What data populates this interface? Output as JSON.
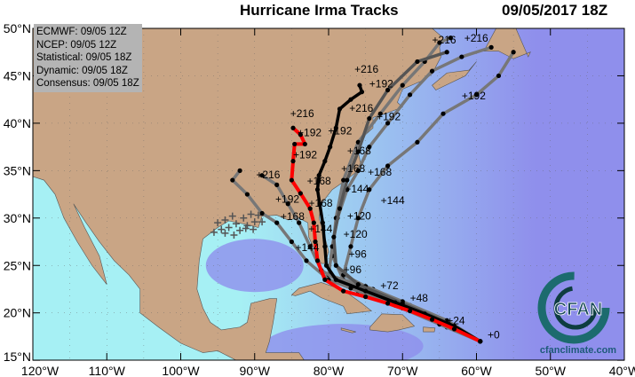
{
  "header": {
    "title": "Hurricane Irma Tracks",
    "datetime": "09/05/2017 18Z"
  },
  "legend": {
    "items": [
      "ECMWF: 09/05 12Z",
      "NCEP: 09/05 12Z",
      "Statistical: 09/05 18Z",
      "Dynamic: 09/05 18Z",
      "Consensus: 09/05 18Z"
    ]
  },
  "axes": {
    "lon_ticks": [
      {
        "lon": -120,
        "label": "120°W"
      },
      {
        "lon": -110,
        "label": "110°W"
      },
      {
        "lon": -100,
        "label": "100°W"
      },
      {
        "lon": -90,
        "label": "90°W"
      },
      {
        "lon": -80,
        "label": "80°W"
      },
      {
        "lon": -70,
        "label": "70°W"
      },
      {
        "lon": -60,
        "label": "60°W"
      },
      {
        "lon": -50,
        "label": "50°W"
      },
      {
        "lon": -40,
        "label": "40°W"
      }
    ],
    "lat_ticks": [
      {
        "lat": 50,
        "label": "50°N"
      },
      {
        "lat": 45,
        "label": "45°N"
      },
      {
        "lat": 40,
        "label": "40°N"
      },
      {
        "lat": 35,
        "label": "35°N"
      },
      {
        "lat": 30,
        "label": "30°N"
      },
      {
        "lat": 25,
        "label": "25°N"
      },
      {
        "lat": 20,
        "label": "20°N"
      },
      {
        "lat": 15,
        "label": "15°N"
      }
    ],
    "extent": {
      "lon": [
        -120,
        -40
      ],
      "lat": [
        15,
        50
      ]
    }
  },
  "colors": {
    "land": "#c9a585",
    "ocean_shallow": "#a6f0f4",
    "ocean_deep": "#8f8fec",
    "consensus_track": "#ff0000",
    "ecmwf_track": "#000000",
    "other_tracks": "#777777"
  },
  "tracks": [
    {
      "color": "#ff0000",
      "points": [
        [
          -59.5,
          17
        ],
        [
          -63,
          18.3
        ],
        [
          -66,
          19.3
        ],
        [
          -69,
          20.2
        ],
        [
          -72,
          21
        ],
        [
          -75,
          21.7
        ],
        [
          -78,
          22.3
        ],
        [
          -80.5,
          23.5
        ],
        [
          -81.5,
          25.5
        ],
        [
          -81.8,
          27.5
        ],
        [
          -82,
          29.5
        ],
        [
          -82.5,
          31
        ],
        [
          -83.8,
          32.6
        ],
        [
          -85,
          34
        ],
        [
          -84.8,
          36
        ],
        [
          -84.6,
          37.8
        ],
        [
          -83.2,
          37.8
        ],
        [
          -83.8,
          38.8
        ],
        [
          -84.8,
          39.5
        ]
      ]
    },
    {
      "color": "#000000",
      "points": [
        [
          -59.5,
          17
        ],
        [
          -63,
          18.6
        ],
        [
          -67,
          19.9
        ],
        [
          -71,
          21.1
        ],
        [
          -75,
          22.3
        ],
        [
          -79,
          23.5
        ],
        [
          -80.3,
          25
        ],
        [
          -80.5,
          27
        ],
        [
          -80.8,
          29.5
        ],
        [
          -81.2,
          31.5
        ],
        [
          -81.5,
          33
        ],
        [
          -81.3,
          34.5
        ],
        [
          -80.5,
          36
        ],
        [
          -79.8,
          37.5
        ],
        [
          -79,
          39.5
        ],
        [
          -78.5,
          41.5
        ],
        [
          -77,
          42.5
        ],
        [
          -75.5,
          43.3
        ],
        [
          -75.8,
          44
        ]
      ]
    },
    {
      "color": "#777777",
      "points": [
        [
          -59.5,
          17
        ],
        [
          -64,
          18.9
        ],
        [
          -69,
          20.6
        ],
        [
          -74,
          22.3
        ],
        [
          -78,
          23.5
        ],
        [
          -79.5,
          26
        ],
        [
          -79,
          30
        ],
        [
          -78,
          34
        ],
        [
          -76,
          38
        ],
        [
          -73,
          41
        ],
        [
          -70,
          44
        ],
        [
          -67,
          46.5
        ],
        [
          -65,
          48.5
        ],
        [
          -63.5,
          49
        ]
      ]
    },
    {
      "color": "#777777",
      "points": [
        [
          -59.5,
          17
        ],
        [
          -64,
          19
        ],
        [
          -69,
          20.8
        ],
        [
          -74,
          22.5
        ],
        [
          -80,
          24
        ],
        [
          -79.5,
          27
        ],
        [
          -78.8,
          30
        ],
        [
          -77.5,
          33
        ],
        [
          -76,
          35
        ],
        [
          -74.5,
          37.5
        ],
        [
          -72,
          40
        ],
        [
          -69,
          43
        ],
        [
          -66,
          45.5
        ],
        [
          -62,
          47
        ],
        [
          -58,
          48
        ]
      ]
    },
    {
      "color": "#777777",
      "points": [
        [
          -59.5,
          17
        ],
        [
          -64,
          19.2
        ],
        [
          -70,
          21.2
        ],
        [
          -75,
          22.8
        ],
        [
          -78,
          24
        ],
        [
          -77,
          27
        ],
        [
          -76,
          30
        ],
        [
          -74.5,
          33
        ],
        [
          -72,
          35.5
        ],
        [
          -68,
          38
        ],
        [
          -64.5,
          41
        ],
        [
          -60,
          43
        ],
        [
          -57,
          45
        ],
        [
          -55,
          47.5
        ]
      ]
    },
    {
      "color": "#777777",
      "points": [
        [
          -59.5,
          17
        ],
        [
          -64,
          18.5
        ],
        [
          -70,
          20.5
        ],
        [
          -76,
          22.3
        ],
        [
          -80,
          23.5
        ],
        [
          -83,
          25.5
        ],
        [
          -85,
          27.5
        ],
        [
          -87,
          29.5
        ],
        [
          -89,
          30.5
        ],
        [
          -91,
          32.5
        ],
        [
          -93,
          34
        ],
        [
          -92,
          35
        ]
      ]
    },
    {
      "color": "#777777",
      "points": [
        [
          -59.5,
          17
        ],
        [
          -65,
          18.8
        ],
        [
          -71,
          20.8
        ],
        [
          -77,
          22.6
        ],
        [
          -81,
          24.5
        ],
        [
          -82.5,
          27
        ],
        [
          -84,
          29.5
        ],
        [
          -85.5,
          31.5
        ],
        [
          -87,
          33.5
        ],
        [
          -89,
          34.5
        ]
      ]
    },
    {
      "color": "#555555",
      "points": [
        [
          -59.5,
          17
        ],
        [
          -64,
          19
        ],
        [
          -70,
          21
        ],
        [
          -76,
          23
        ],
        [
          -79,
          25
        ],
        [
          -79.3,
          28
        ],
        [
          -78.5,
          31
        ],
        [
          -77.5,
          34
        ],
        [
          -76,
          37
        ],
        [
          -74.5,
          40.5
        ],
        [
          -72,
          43.5
        ],
        [
          -68,
          46.5
        ],
        [
          -64,
          47.5
        ]
      ]
    }
  ],
  "track_labels": [
    {
      "text": "+0",
      "lon": -58.5,
      "lat": 17.3
    },
    {
      "text": "+24",
      "lon": -64,
      "lat": 18.8
    },
    {
      "text": "+48",
      "lon": -69,
      "lat": 21.2
    },
    {
      "text": "+72",
      "lon": -73,
      "lat": 22.5
    },
    {
      "text": "+96",
      "lon": -78,
      "lat": 24.2
    },
    {
      "text": "+96",
      "lon": -77.3,
      "lat": 25.8
    },
    {
      "text": "+120",
      "lon": -78,
      "lat": 26.8
    },
    {
      "text": "+120",
      "lon": -77.5,
      "lat": 28.7
    },
    {
      "text": "+144",
      "lon": -84.5,
      "lat": 26.5
    },
    {
      "text": "+144",
      "lon": -80.8,
      "lat": 28.5
    },
    {
      "text": "+144",
      "lon": -77.8,
      "lat": 32.7
    },
    {
      "text": "+144",
      "lon": -76.8,
      "lat": 31.5
    },
    {
      "text": "+168",
      "lon": -86.5,
      "lat": 29.8
    },
    {
      "text": "+168",
      "lon": -82.7,
      "lat": 31.2
    },
    {
      "text": "+168",
      "lon": -81,
      "lat": 32.4
    },
    {
      "text": "+168",
      "lon": -78.3,
      "lat": 32.6
    },
    {
      "text": "+168",
      "lon": -77.5,
      "lat": 35.6
    },
    {
      "text": "+168",
      "lon": -74.7,
      "lat": 35.6
    },
    {
      "text": "+192",
      "lon": -87.2,
      "lat": 31.6
    },
    {
      "text": "+192",
      "lon": -84.8,
      "lat": 36.3
    },
    {
      "text": "+192",
      "lon": -84.2,
      "lat": 37.5
    },
    {
      "text": "+192",
      "lon": -82,
      "lat": 37.7
    },
    {
      "text": "+192",
      "lon": -73.5,
      "lat": 40.3
    },
    {
      "text": "+192",
      "lon": -74.5,
      "lat": 43.8
    },
    {
      "text": "+192",
      "lon": -62,
      "lat": 42.5
    },
    {
      "text": "+216",
      "lon": -89.8,
      "lat": 34.2
    },
    {
      "text": "+216",
      "lon": -85.2,
      "lat": 39.5
    },
    {
      "text": "+216",
      "lon": -77.2,
      "lat": 41.2
    },
    {
      "text": "+216",
      "lon": -76.5,
      "lat": 44.2
    },
    {
      "text": "+216",
      "lon": -66,
      "lat": 48.4
    },
    {
      "text": "+216",
      "lon": -65.5,
      "lat": 49.7
    }
  ],
  "ensemble_points": [
    [
      -95,
      29.5
    ],
    [
      -94.5,
      28.8
    ],
    [
      -94,
      29.8
    ],
    [
      -93.5,
      29
    ],
    [
      -93,
      30.2
    ],
    [
      -92.5,
      29.4
    ],
    [
      -92,
      28.7
    ],
    [
      -91.5,
      30
    ],
    [
      -91,
      29.2
    ],
    [
      -90.5,
      30.4
    ],
    [
      -90,
      29.6
    ],
    [
      -89.5,
      30.3
    ],
    [
      -95.5,
      28.5
    ],
    [
      -94,
      28.4
    ],
    [
      -92.8,
      28.2
    ],
    [
      -91.2,
      28.9
    ],
    [
      -90.2,
      28.8
    ],
    [
      -89,
      29.6
    ]
  ],
  "logo": {
    "text": "CFAN",
    "ring_text": "CLIMATE FORECAST APPLICATIONS NETWORK",
    "url": "cfanclimate.com"
  }
}
